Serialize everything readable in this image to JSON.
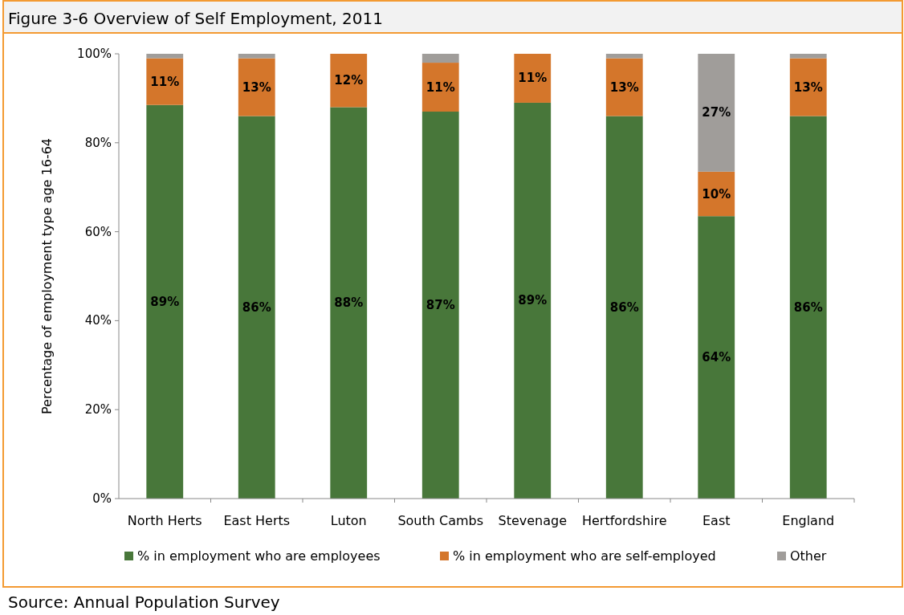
{
  "chart_data": {
    "type": "bar",
    "stacked": true,
    "title": "Figure 3-6 Overview of Self Employment, 2011",
    "ylabel": "Percentage of employment type age 16-64",
    "categories": [
      "North Herts",
      "East Herts",
      "Luton",
      "South Cambs",
      "Stevenage",
      "Hertfordshire",
      "East",
      "England"
    ],
    "series": [
      {
        "name": "% in employment who are employees",
        "color": "#48773a",
        "values": [
          88.5,
          86,
          88,
          87,
          89,
          86,
          63.5,
          86
        ],
        "value_labels": [
          "89%",
          "86%",
          "88%",
          "87%",
          "89%",
          "86%",
          "64%",
          "86%"
        ]
      },
      {
        "name": "% in employment who are self-employed",
        "color": "#d4762b",
        "values": [
          10.5,
          13,
          12,
          11,
          11,
          13,
          10,
          13
        ],
        "value_labels": [
          "11%",
          "13%",
          "12%",
          "11%",
          "11%",
          "13%",
          "10%",
          "13%"
        ]
      },
      {
        "name": "Other",
        "color": "#a09d9a",
        "values": [
          1,
          1,
          0,
          2,
          0,
          1,
          26.5,
          1
        ],
        "value_labels": [
          null,
          null,
          null,
          null,
          null,
          null,
          "27%",
          null
        ]
      }
    ],
    "ylim": [
      0,
      100
    ],
    "yticks": [
      {
        "value": 0,
        "label": "0%"
      },
      {
        "value": 20,
        "label": "20%"
      },
      {
        "value": 40,
        "label": "40%"
      },
      {
        "value": 60,
        "label": "60%"
      },
      {
        "value": 80,
        "label": "80%"
      },
      {
        "value": 100,
        "label": "100%"
      }
    ],
    "grid": false,
    "legend": "bottom",
    "annotations": [
      "Source: Annual Population Survey"
    ]
  }
}
